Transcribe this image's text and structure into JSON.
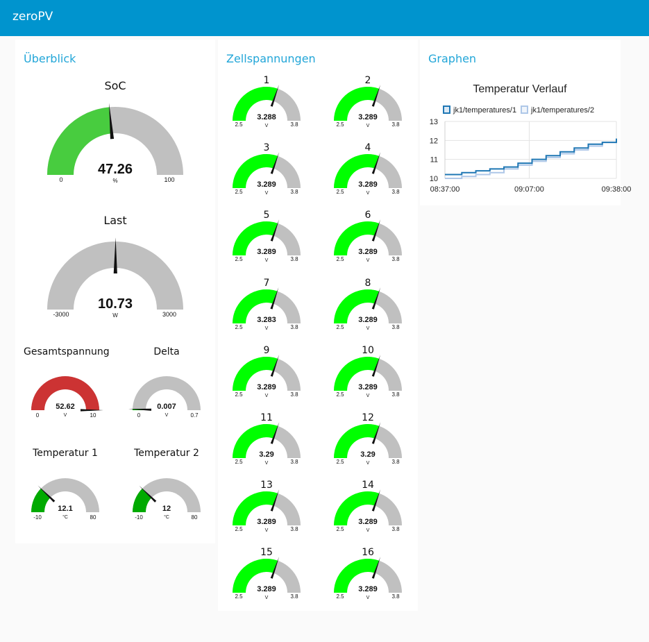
{
  "app": {
    "title": "zeroPV"
  },
  "panels": {
    "overview": {
      "title": "Überblick"
    },
    "cells": {
      "title": "Zellspannungen"
    },
    "graphs": {
      "title": "Graphen"
    }
  },
  "colors": {
    "header": "#0094ce",
    "panel_title": "#22a6d8",
    "gauge_track": "#c0c0c0",
    "soc_fill": "#48cc3f",
    "cell_fill": "#00ff00",
    "volt_fill": "#cc3333",
    "delta_fill": "#00aa00",
    "temp_fill": "#00aa00",
    "series1": "#1f77b4",
    "series2": "#aec7e8"
  },
  "overview": {
    "soc": {
      "label": "SoC",
      "value": 47.26,
      "display": "47.26",
      "unit": "%",
      "min": 0,
      "max": 100,
      "min_label": "0",
      "max_label": "100"
    },
    "load": {
      "label": "Last",
      "value": 10.73,
      "display": "10.73",
      "unit": "W",
      "min": -3000,
      "max": 3000,
      "min_label": "-3000",
      "max_label": "3000"
    },
    "total_voltage": {
      "label": "Gesamtspannung",
      "value": 52.62,
      "display": "52.62",
      "unit": "V",
      "min": 0,
      "max": 10,
      "min_label": "0",
      "max_label": "10"
    },
    "delta": {
      "label": "Delta",
      "value": 0.007,
      "display": "0.007",
      "unit": "V",
      "min": 0,
      "max": 0.7,
      "min_label": "0",
      "max_label": "0.7"
    },
    "temp1": {
      "label": "Temperatur 1",
      "value": 12.1,
      "display": "12.1",
      "unit": "°C",
      "min": -10,
      "max": 80,
      "min_label": "-10",
      "max_label": "80"
    },
    "temp2": {
      "label": "Temperatur 2",
      "value": 12,
      "display": "12",
      "unit": "°C",
      "min": -10,
      "max": 80,
      "min_label": "-10",
      "max_label": "80"
    }
  },
  "cells": {
    "unit": "V",
    "min": 2.5,
    "max": 3.8,
    "min_label": "2.5",
    "max_label": "3.8",
    "items": [
      {
        "label": "1",
        "value": 3.288,
        "display": "3.288"
      },
      {
        "label": "2",
        "value": 3.289,
        "display": "3.289"
      },
      {
        "label": "3",
        "value": 3.289,
        "display": "3.289"
      },
      {
        "label": "4",
        "value": 3.289,
        "display": "3.289"
      },
      {
        "label": "5",
        "value": 3.289,
        "display": "3.289"
      },
      {
        "label": "6",
        "value": 3.289,
        "display": "3.289"
      },
      {
        "label": "7",
        "value": 3.283,
        "display": "3.283"
      },
      {
        "label": "8",
        "value": 3.289,
        "display": "3.289"
      },
      {
        "label": "9",
        "value": 3.289,
        "display": "3.289"
      },
      {
        "label": "10",
        "value": 3.289,
        "display": "3.289"
      },
      {
        "label": "11",
        "value": 3.29,
        "display": "3.29"
      },
      {
        "label": "12",
        "value": 3.29,
        "display": "3.29"
      },
      {
        "label": "13",
        "value": 3.289,
        "display": "3.289"
      },
      {
        "label": "14",
        "value": 3.289,
        "display": "3.289"
      },
      {
        "label": "15",
        "value": 3.289,
        "display": "3.289"
      },
      {
        "label": "16",
        "value": 3.289,
        "display": "3.289"
      }
    ]
  },
  "chart_data": {
    "type": "line",
    "title": "Temperatur Verlauf",
    "xlabel": "",
    "ylabel": "",
    "x_ticks": [
      "08:37:00",
      "09:07:00",
      "09:38:00"
    ],
    "x_range": [
      "08:37:00",
      "09:38:00"
    ],
    "ylim": [
      10,
      13
    ],
    "y_ticks": [
      10,
      11,
      12,
      13
    ],
    "grid": true,
    "legend": "top",
    "series": [
      {
        "name": "jk1/temperatures/1",
        "x": [
          "08:37:00",
          "08:43:00",
          "08:48:00",
          "08:53:00",
          "08:58:00",
          "09:03:00",
          "09:08:00",
          "09:13:00",
          "09:18:00",
          "09:23:00",
          "09:28:00",
          "09:33:00",
          "09:38:00"
        ],
        "y": [
          10.2,
          10.3,
          10.4,
          10.5,
          10.6,
          10.8,
          11.0,
          11.2,
          11.4,
          11.6,
          11.8,
          11.9,
          12.1
        ]
      },
      {
        "name": "jk1/temperatures/2",
        "x": [
          "08:37:00",
          "08:43:00",
          "08:48:00",
          "08:53:00",
          "08:58:00",
          "09:03:00",
          "09:08:00",
          "09:13:00",
          "09:18:00",
          "09:23:00",
          "09:28:00",
          "09:33:00",
          "09:38:00"
        ],
        "y": [
          10.0,
          10.1,
          10.2,
          10.3,
          10.5,
          10.7,
          10.9,
          11.1,
          11.3,
          11.5,
          11.7,
          11.9,
          12.0
        ]
      }
    ]
  }
}
